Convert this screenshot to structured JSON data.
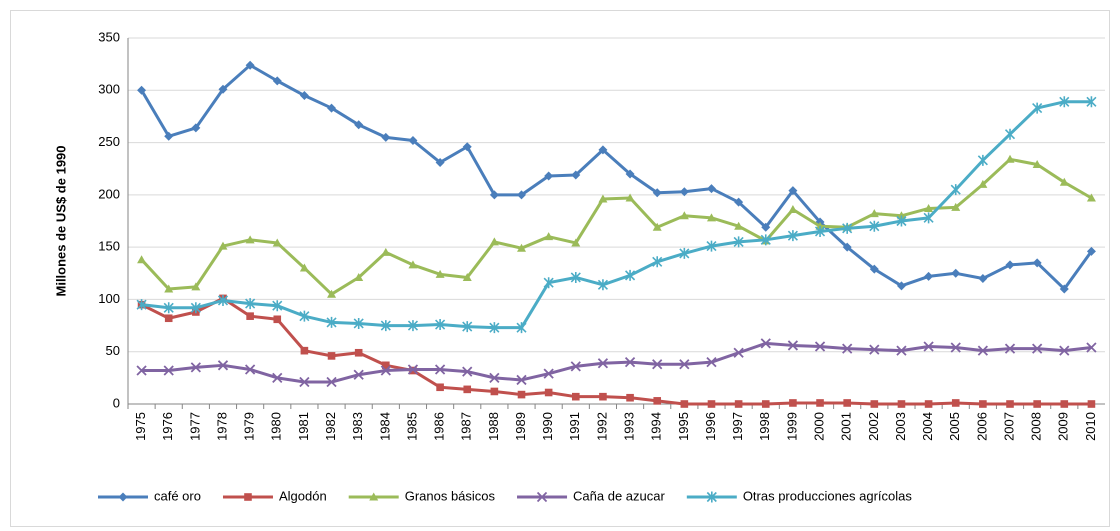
{
  "chart_data": {
    "type": "line",
    "y_label": "Millones de US$ de 1990",
    "categories": [
      "1975",
      "1976",
      "1977",
      "1978",
      "1979",
      "1980",
      "1981",
      "1982",
      "1983",
      "1984",
      "1985",
      "1986",
      "1987",
      "1988",
      "1989",
      "1990",
      "1991",
      "1992",
      "1993",
      "1994",
      "1995",
      "1996",
      "1997",
      "1998",
      "1999",
      "2000",
      "2001",
      "2002",
      "2003",
      "2004",
      "2005",
      "2006",
      "2007",
      "2008",
      "2009",
      "2010"
    ],
    "ylim": [
      0,
      350
    ],
    "yticks": [
      0,
      50,
      100,
      150,
      200,
      250,
      300,
      350
    ],
    "grid": true,
    "legend": "bottom",
    "series": [
      {
        "name": "café oro",
        "color": "#4a7ebb",
        "marker": "diamond",
        "values": [
          300,
          256,
          264,
          301,
          324,
          309,
          295,
          283,
          267,
          255,
          252,
          231,
          246,
          200,
          200,
          218,
          219,
          243,
          220,
          202,
          203,
          206,
          193,
          169,
          204,
          174,
          150,
          129,
          113,
          122,
          125,
          120,
          133,
          135,
          110,
          146
        ]
      },
      {
        "name": "Algodón",
        "color": "#c0504d",
        "marker": "square",
        "values": [
          95,
          82,
          88,
          101,
          84,
          81,
          51,
          46,
          49,
          37,
          32,
          16,
          14,
          12,
          9,
          11,
          7,
          7,
          6,
          3,
          0,
          0,
          0,
          0,
          1,
          1,
          1,
          0,
          0,
          0,
          1,
          0,
          0,
          0,
          0,
          0
        ]
      },
      {
        "name": "Granos básicos",
        "color": "#9bbb59",
        "marker": "triangle",
        "values": [
          138,
          110,
          112,
          151,
          157,
          154,
          130,
          105,
          121,
          145,
          133,
          124,
          121,
          155,
          149,
          160,
          154,
          196,
          197,
          169,
          180,
          178,
          170,
          156,
          186,
          170,
          169,
          182,
          180,
          187,
          188,
          210,
          234,
          229,
          212,
          197
        ]
      },
      {
        "name": "Caña de azucar",
        "color": "#8064a2",
        "marker": "x",
        "values": [
          32,
          32,
          35,
          37,
          33,
          25,
          21,
          21,
          28,
          32,
          33,
          33,
          31,
          25,
          23,
          29,
          36,
          39,
          40,
          38,
          38,
          40,
          49,
          58,
          56,
          55,
          53,
          52,
          51,
          55,
          54,
          51,
          53,
          53,
          51,
          54
        ]
      },
      {
        "name": "Otras producciones agrícolas",
        "color": "#4bacc6",
        "marker": "star",
        "values": [
          95,
          92,
          92,
          99,
          96,
          94,
          84,
          78,
          77,
          75,
          75,
          76,
          74,
          73,
          73,
          116,
          121,
          114,
          123,
          136,
          144,
          151,
          155,
          157,
          161,
          165,
          168,
          170,
          175,
          178,
          205,
          233,
          258,
          283,
          289,
          289
        ]
      }
    ]
  }
}
